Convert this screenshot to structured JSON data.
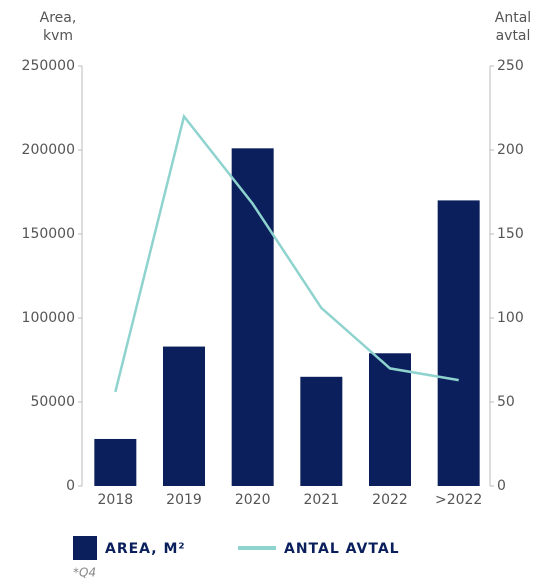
{
  "chart_data": {
    "type": "bar_line",
    "y_label": [
      "Area,",
      "kvm"
    ],
    "y2_label": [
      "Antal",
      "avtal"
    ],
    "categories": [
      "2018",
      "2019",
      "2020",
      "2021",
      "2022",
      ">2022"
    ],
    "series": [
      {
        "name": "AREA, M²",
        "type": "bar",
        "color": "#0a1f5c",
        "values": [
          28000,
          83000,
          201000,
          65000,
          79000,
          170000
        ]
      },
      {
        "name": "ANTAL AVTAL",
        "type": "line",
        "axis": "y2",
        "color": "#8fd3cf",
        "values": [
          56,
          220,
          168,
          106,
          70,
          63
        ]
      }
    ],
    "ylim": [
      0,
      250000
    ],
    "yticks": [
      0,
      50000,
      100000,
      150000,
      200000,
      250000
    ],
    "y2lim": [
      0,
      250
    ],
    "y2ticks": [
      0,
      50,
      100,
      150,
      200,
      250
    ],
    "footnote": "*Q4"
  }
}
